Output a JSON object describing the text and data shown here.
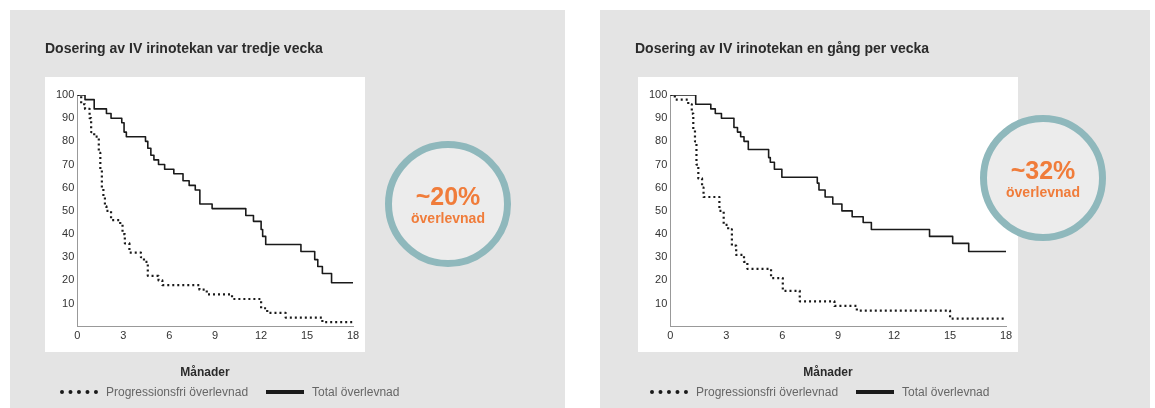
{
  "chart_data": [
    {
      "type": "step",
      "title": "Dosering av IV irinotekan var tredje vecka",
      "xlabel": "Månader",
      "legend": "bottom",
      "xlim": [
        0,
        18
      ],
      "xticks": [
        0,
        3,
        6,
        9,
        12,
        15,
        18
      ],
      "ylim": [
        0,
        100
      ],
      "yticks": [
        10,
        20,
        30,
        40,
        50,
        60,
        70,
        80,
        90,
        100
      ],
      "annotations": [
        "~20%",
        "överlevnad"
      ],
      "series": [
        {
          "name": "Progressionsfri överlevnad",
          "color": "#1a1a1a",
          "line_style": "dotted",
          "x": [
            0,
            0.25,
            0.5,
            0.8,
            0.9,
            1.1,
            1.4,
            1.5,
            1.6,
            1.7,
            1.8,
            1.9,
            2.2,
            2.8,
            2.95,
            3.1,
            3.4,
            4.15,
            4.35,
            4.6,
            5.3,
            5.55,
            7.97,
            8.45,
            10.1,
            12.0,
            12.4,
            13.6,
            16.0,
            18
          ],
          "values": [
            100,
            96,
            94,
            90,
            84,
            82,
            75,
            68,
            60,
            56,
            52,
            50,
            46,
            44,
            40,
            36,
            32,
            30,
            28,
            22,
            20,
            18,
            16,
            14,
            12,
            8,
            6,
            4,
            2,
            2
          ]
        },
        {
          "name": "Total överlevnad",
          "color": "#1a1a1a",
          "line_style": "solid",
          "x": [
            0,
            0.5,
            1.1,
            1.9,
            2.2,
            2.9,
            3.05,
            3.2,
            4.45,
            4.6,
            4.8,
            5.0,
            5.3,
            5.7,
            6.3,
            6.9,
            7.3,
            7.7,
            8.0,
            8.8,
            11.0,
            11.5,
            12.0,
            12.1,
            12.3,
            14.6,
            15.5,
            15.7,
            16.0,
            16.6,
            18
          ],
          "values": [
            100,
            98,
            94,
            92,
            90,
            88,
            84,
            82,
            80,
            77,
            74,
            72,
            70,
            68,
            66,
            63,
            61,
            59,
            53,
            51,
            48,
            45.5,
            42,
            39,
            35.5,
            32.5,
            29,
            26,
            23,
            19,
            19
          ]
        }
      ]
    },
    {
      "type": "step",
      "title": "Dosering av IV irinotekan en gång per vecka",
      "xlabel": "Månader",
      "legend": "bottom",
      "xlim": [
        0,
        18
      ],
      "xticks": [
        0,
        3,
        6,
        9,
        12,
        15,
        18
      ],
      "ylim": [
        0,
        100
      ],
      "yticks": [
        10,
        20,
        30,
        40,
        50,
        60,
        70,
        80,
        90,
        100
      ],
      "annotations": [
        "~32%",
        "överlevnad"
      ],
      "series": [
        {
          "name": "Progressionsfri överlevnad",
          "color": "#1a1a1a",
          "line_style": "dotted",
          "x": [
            0,
            0.24,
            0.96,
            1.15,
            1.23,
            1.32,
            1.4,
            1.5,
            1.7,
            1.78,
            2.63,
            2.86,
            3.1,
            3.3,
            3.53,
            3.95,
            4.13,
            5.4,
            6.03,
            6.94,
            8.8,
            10.0,
            15.0,
            18
          ],
          "values": [
            100,
            98,
            96,
            92,
            85,
            80,
            70,
            64,
            60,
            56,
            50,
            44,
            42,
            35,
            31,
            28,
            25,
            21,
            15.5,
            11,
            9,
            7,
            3.5,
            3.5
          ]
        },
        {
          "name": "Total överlevnad",
          "color": "#1a1a1a",
          "line_style": "solid",
          "x": [
            0,
            1.36,
            2.17,
            2.41,
            2.74,
            3.41,
            3.6,
            3.77,
            3.95,
            4.18,
            5.27,
            5.36,
            5.58,
            5.98,
            7.88,
            7.97,
            8.3,
            8.71,
            9.2,
            9.75,
            10.34,
            10.78,
            13.9,
            15.14,
            16.0,
            18
          ],
          "values": [
            100,
            96,
            94,
            92,
            90,
            86,
            84,
            82,
            80,
            76.5,
            73,
            71,
            68,
            64.5,
            62,
            59,
            56,
            53,
            50,
            47.5,
            45,
            42,
            39,
            36,
            32.5,
            32.5
          ]
        }
      ]
    }
  ]
}
